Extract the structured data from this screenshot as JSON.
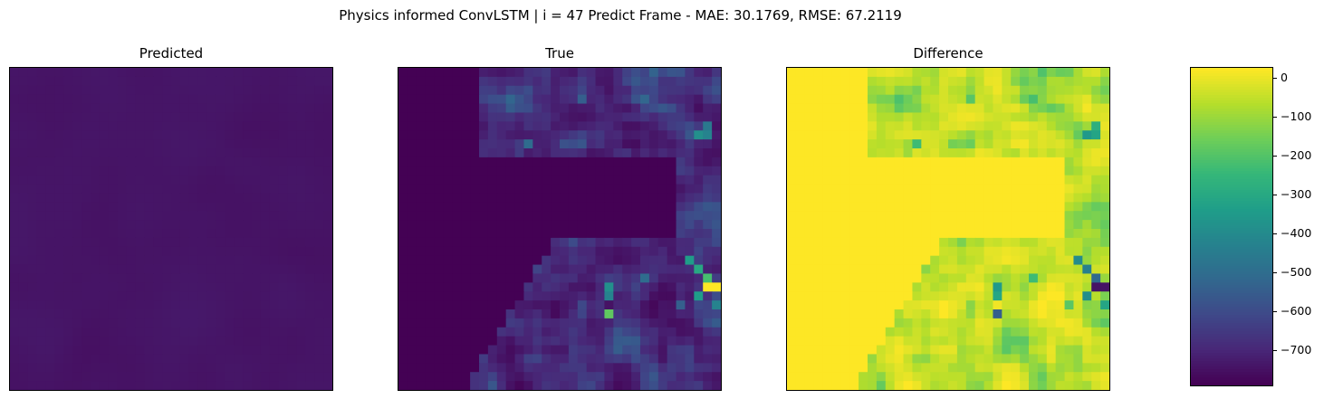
{
  "title": "Physics informed ConvLSTM | i = 47 Predict Frame - MAE: 30.1769, RMSE: 67.2119",
  "colormap": [
    "#440154",
    "#482878",
    "#3e4989",
    "#31688e",
    "#26828e",
    "#1f9e89",
    "#35b779",
    "#6ece58",
    "#b5de2b",
    "#fde725"
  ],
  "chart_data": [
    {
      "type": "heatmap",
      "title": "Predicted",
      "grid": false,
      "xlabel": "",
      "ylabel": "",
      "xticks": [],
      "yticks": [],
      "colormap": "viridis",
      "description_values": "mostly low values (~0-0.1 normalized), smooth field"
    },
    {
      "type": "heatmap",
      "title": "True",
      "grid": false,
      "xlabel": "",
      "ylabel": "",
      "xticks": [],
      "yticks": [],
      "colormap": "viridis"
    },
    {
      "type": "heatmap",
      "title": "Difference",
      "grid": false,
      "xlabel": "",
      "ylabel": "",
      "xticks": [],
      "yticks": [],
      "colormap": "viridis",
      "colorbar": {
        "range": [
          -790,
          25
        ],
        "ticks": [
          0,
          -100,
          -200,
          -300,
          -400,
          -500,
          -600,
          -700
        ],
        "tick_labels": [
          "0",
          "−100",
          "−200",
          "−300",
          "−400",
          "−500",
          "−600",
          "−700"
        ]
      }
    }
  ]
}
